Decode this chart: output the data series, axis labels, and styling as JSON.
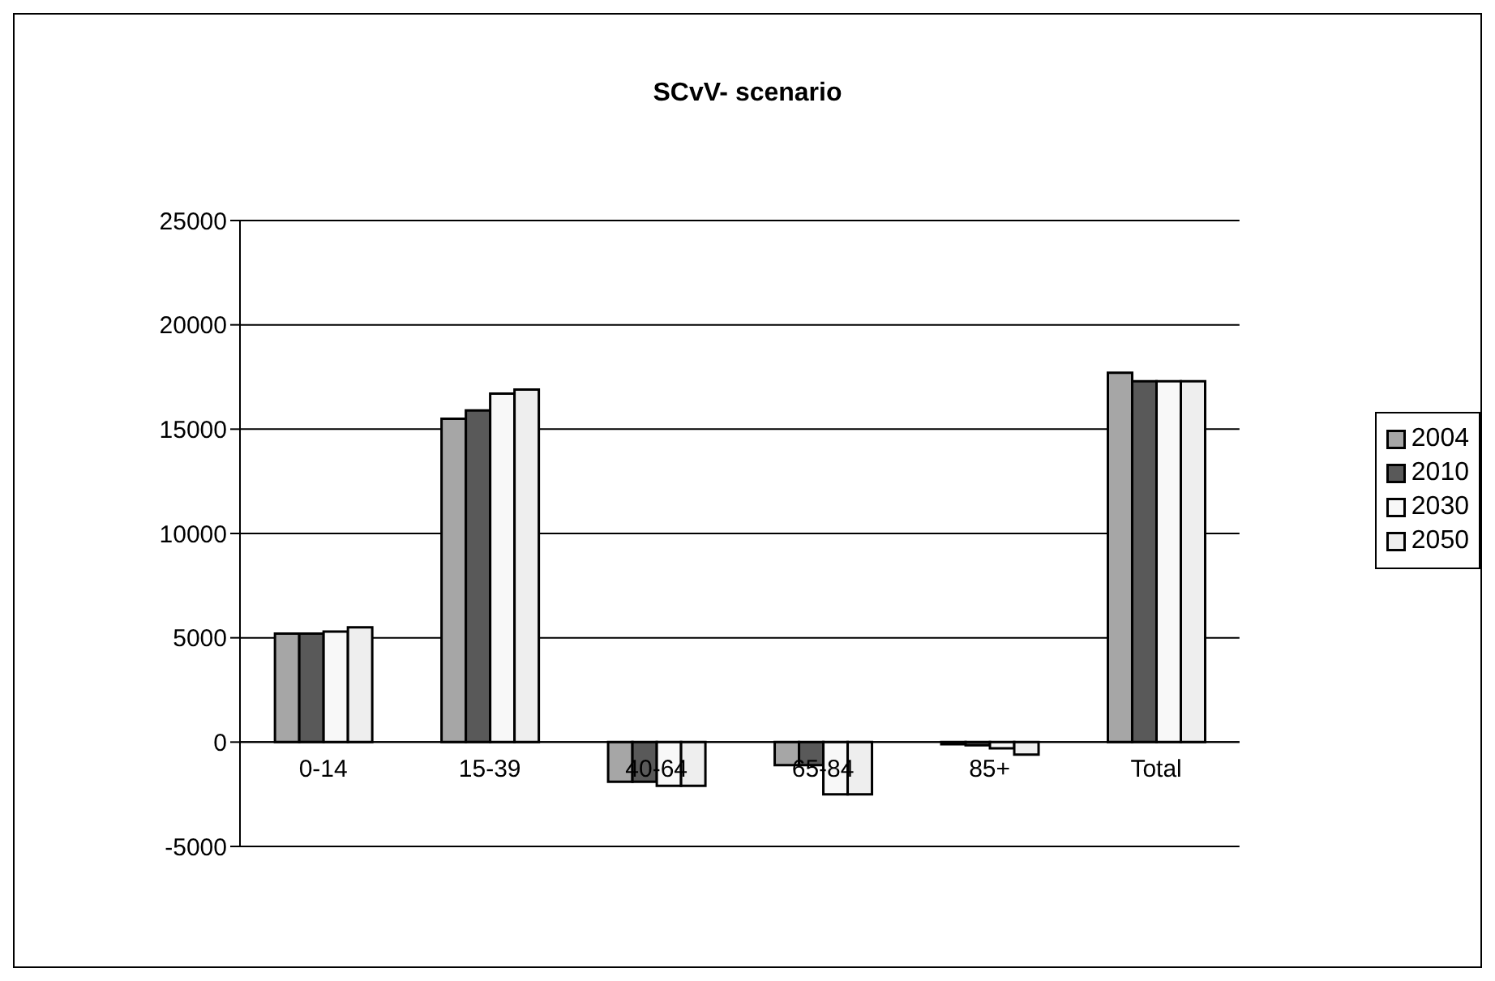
{
  "chart_data": {
    "type": "bar",
    "title": "SCvV- scenario",
    "categories": [
      "0-14",
      "15-39",
      "40-64",
      "65-84",
      "85+",
      "Total"
    ],
    "series": [
      {
        "name": "2004",
        "color": "#a6a6a6",
        "values": [
          5200,
          15500,
          -1900,
          -1100,
          -100,
          17700
        ]
      },
      {
        "name": "2010",
        "color": "#595959",
        "values": [
          5200,
          15900,
          -1900,
          -1100,
          -150,
          17300
        ]
      },
      {
        "name": "2030",
        "color": "#f8f8f8",
        "values": [
          5300,
          16700,
          -2100,
          -2500,
          -300,
          17300
        ]
      },
      {
        "name": "2050",
        "color": "#eeeeee",
        "values": [
          5500,
          16900,
          -2100,
          -2500,
          -600,
          17300
        ]
      }
    ],
    "ylim": [
      -5000,
      25000
    ],
    "yticks": [
      -5000,
      0,
      5000,
      10000,
      15000,
      20000,
      25000
    ],
    "grid": "y",
    "legend": "right"
  }
}
